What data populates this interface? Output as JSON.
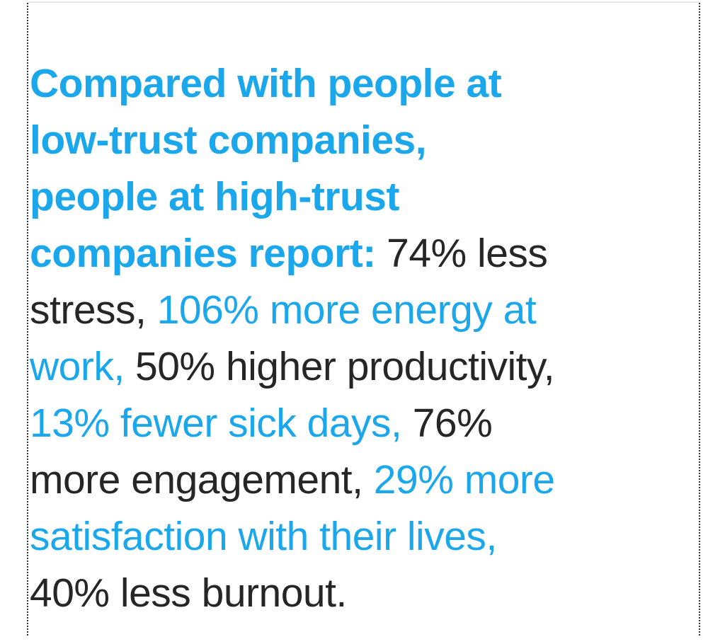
{
  "colors": {
    "accent": "#1aa7ec",
    "text": "#262626"
  },
  "lines": [
    [
      {
        "t": "Compared with people at",
        "s": "hl"
      }
    ],
    [
      {
        "t": "low-trust companies,",
        "s": "hl"
      }
    ],
    [
      {
        "t": "people at high-trust",
        "s": "hl"
      }
    ],
    [
      {
        "t": "companies report:",
        "s": "hl"
      },
      {
        "t": " 74% less",
        "s": "dark"
      }
    ],
    [
      {
        "t": "stress, ",
        "s": "dark"
      },
      {
        "t": "106% more energy at",
        "s": "blue"
      }
    ],
    [
      {
        "t": "work,",
        "s": "blue"
      },
      {
        "t": " 50% higher productivity,",
        "s": "dark"
      }
    ],
    [
      {
        "t": "13% fewer sick days,",
        "s": "blue"
      },
      {
        "t": " 76%",
        "s": "dark"
      }
    ],
    [
      {
        "t": "more engagement, ",
        "s": "dark"
      },
      {
        "t": "29% more",
        "s": "blue"
      }
    ],
    [
      {
        "t": "satisfaction with their lives,",
        "s": "blue"
      }
    ],
    [
      {
        "t": "40% less burnout.",
        "s": "dark"
      }
    ]
  ]
}
